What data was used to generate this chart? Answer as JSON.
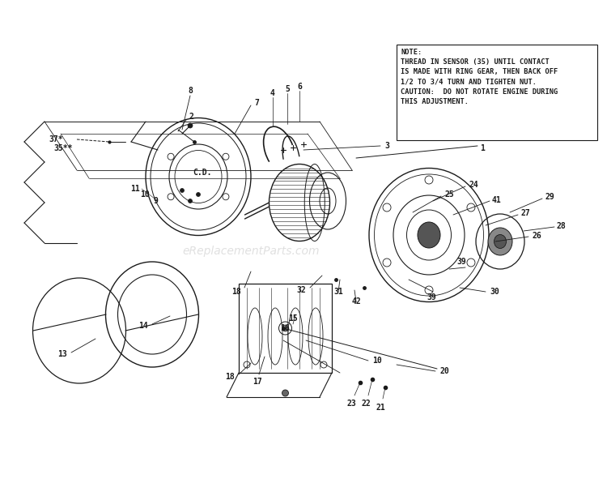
{
  "bg_color": "#ffffff",
  "note_text": "NOTE:\nTHREAD IN SENSOR (35) UNTIL CONTACT\nIS MADE WITH RING GEAR, THEN BACK OFF\n1/2 TO 3/4 TURN AND TIGHTEN NUT.\nCAUTION:  DO NOT ROTATE ENGINE DURING\nTHIS ADJUSTMENT.",
  "watermark": "eReplacementParts.com",
  "line_color": "#1a1a1a",
  "label_fontsize": 7.0,
  "note_fontsize": 6.2
}
